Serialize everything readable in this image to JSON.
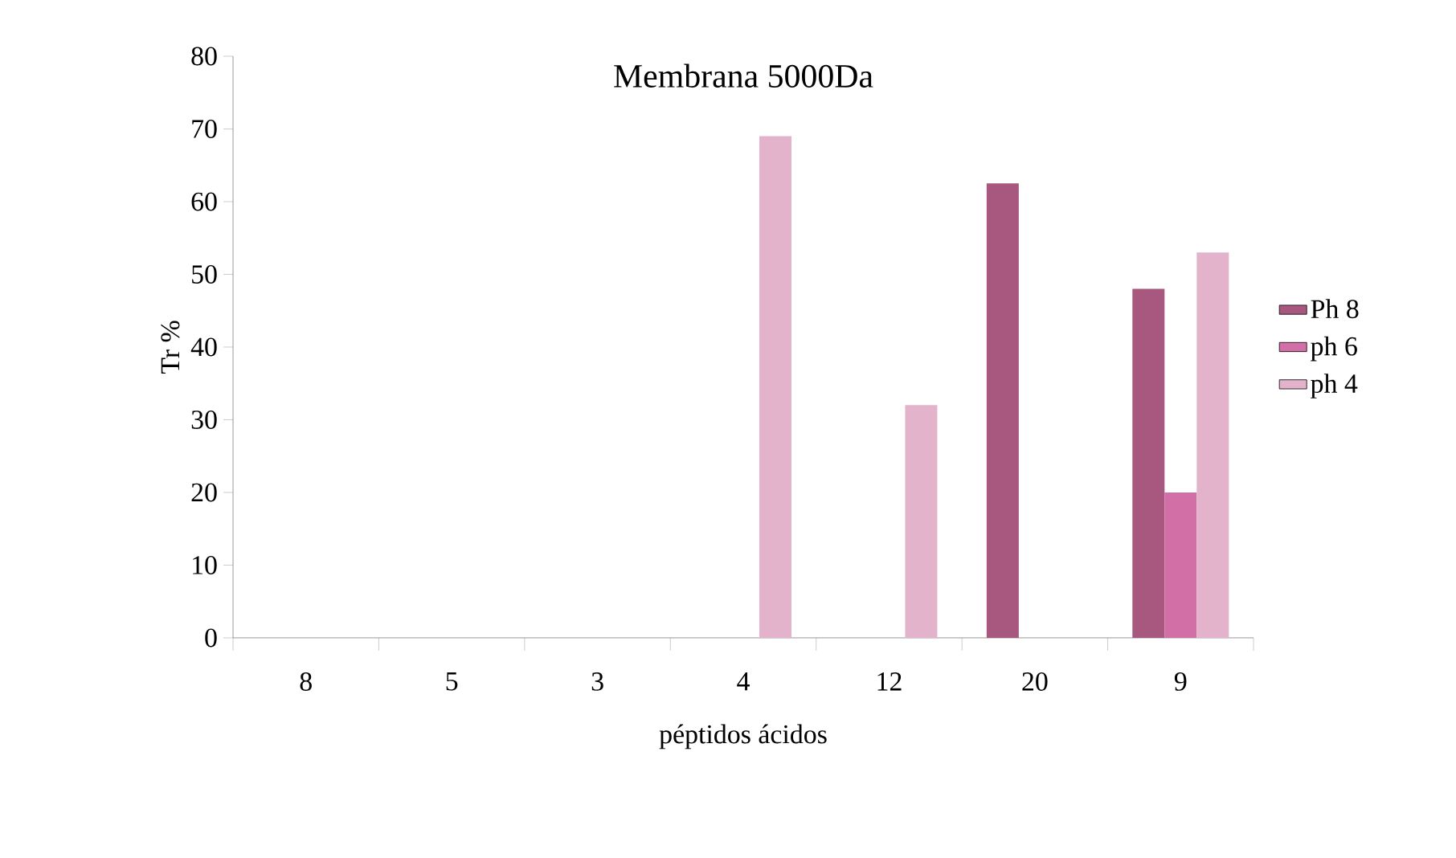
{
  "chart_data": {
    "type": "bar",
    "title": "Membrana 5000Da",
    "xlabel": "péptidos ácidos",
    "ylabel": "Tr %",
    "categories": [
      "8",
      "5",
      "3",
      "4",
      "12",
      "20",
      "9"
    ],
    "series": [
      {
        "name": "Ph 8",
        "color": "#a8587f",
        "values": [
          0,
          0,
          0,
          0,
          0,
          62.5,
          48
        ]
      },
      {
        "name": "ph 6",
        "color": "#d36fa7",
        "values": [
          0,
          0,
          0,
          0,
          0,
          0,
          20
        ]
      },
      {
        "name": "ph 4",
        "color": "#e3b3cb",
        "values": [
          0,
          0,
          0,
          69,
          32,
          0,
          53
        ]
      }
    ],
    "ylim": [
      0,
      80
    ],
    "yticks": [
      0,
      10,
      20,
      30,
      40,
      50,
      60,
      70,
      80
    ],
    "legend": "right",
    "grid": false
  }
}
